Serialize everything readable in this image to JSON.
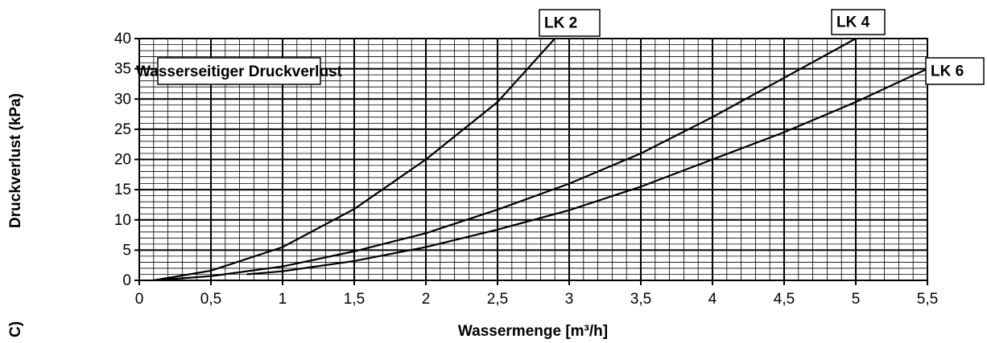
{
  "chart_data": {
    "type": "line",
    "title": "Wasserseitiger Druckverlust",
    "x_label": "Wassermenge [m³/h]",
    "y_label": "Druckverlust (kPa)",
    "side_label": "C)",
    "color": "#000000",
    "grid": true,
    "xlim": [
      0,
      5.5
    ],
    "ylim": [
      0,
      40
    ],
    "xticks": [
      0,
      {
        "value": 0.5,
        "label": "0,5"
      },
      1,
      {
        "value": 1.5,
        "label": "1,5"
      },
      2,
      {
        "value": 2.5,
        "label": "2,5"
      },
      3,
      {
        "value": 3.5,
        "label": "3,5"
      },
      4,
      {
        "value": 4.5,
        "label": "4,5"
      },
      5,
      {
        "value": 5.5,
        "label": "5,5"
      }
    ],
    "yticks": [
      0,
      5,
      10,
      15,
      20,
      25,
      30,
      35,
      40
    ],
    "series": [
      {
        "name": "LK 2",
        "color": "#000000",
        "x": [
          0.1,
          0.5,
          1,
          1.5,
          2,
          2.5,
          2.9
        ],
        "values": [
          0,
          1.6,
          5.5,
          11.8,
          20,
          29.5,
          40
        ]
      },
      {
        "name": "LK 4",
        "color": "#000000",
        "x": [
          0.1,
          0.5,
          1,
          1.5,
          2,
          2.5,
          3,
          3.5,
          4,
          4.5,
          5
        ],
        "values": [
          0,
          0.7,
          2.3,
          4.8,
          7.8,
          11.7,
          16,
          21,
          27,
          33.5,
          40
        ]
      },
      {
        "name": "LK 6",
        "color": "#000000",
        "x": [
          0.75,
          1,
          1.5,
          2,
          2.5,
          3,
          3.5,
          4,
          4.5,
          5,
          5.5
        ],
        "values": [
          1,
          1.5,
          3.2,
          5.5,
          8.4,
          11.6,
          15.5,
          20,
          24.5,
          29.5,
          35
        ]
      }
    ]
  }
}
